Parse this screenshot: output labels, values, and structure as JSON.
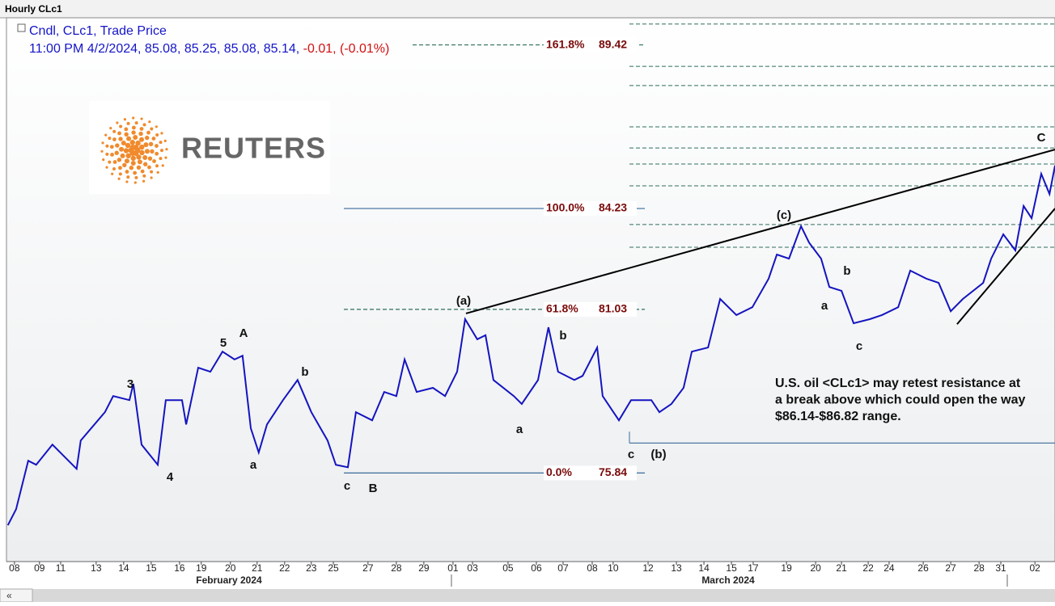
{
  "chart_data": {
    "type": "line",
    "window_title": "Hourly CLc1",
    "logo_text": "REUTERS",
    "header": {
      "line1": "Cndl, CLc1, Trade Price",
      "values_text": "11:00 PM 4/2/2024, 85.08, 85.25, 85.08, 85.14,",
      "change_text": "-0.01, (-0.01%)"
    },
    "color": "#1414c0",
    "xlim": [
      -0.29,
      37.82
    ],
    "ylim": [
      73.03,
      90.28
    ],
    "xticks": [
      {
        "value": 0,
        "label": "08"
      },
      {
        "value": 0.91,
        "label": "09"
      },
      {
        "value": 1.68,
        "label": "11"
      },
      {
        "value": 2.97,
        "label": "13"
      },
      {
        "value": 3.97,
        "label": "14"
      },
      {
        "value": 4.97,
        "label": "15"
      },
      {
        "value": 6.0,
        "label": "16"
      },
      {
        "value": 6.79,
        "label": "19"
      },
      {
        "value": 7.85,
        "label": "20"
      },
      {
        "value": 8.82,
        "label": "21"
      },
      {
        "value": 9.82,
        "label": "22"
      },
      {
        "value": 10.79,
        "label": "23"
      },
      {
        "value": 11.59,
        "label": "25"
      },
      {
        "value": 12.85,
        "label": "27"
      },
      {
        "value": 13.88,
        "label": "28"
      },
      {
        "value": 14.88,
        "label": "29"
      },
      {
        "value": 15.94,
        "label": "01"
      },
      {
        "value": 16.65,
        "label": "03"
      },
      {
        "value": 17.94,
        "label": "05"
      },
      {
        "value": 18.97,
        "label": "06"
      },
      {
        "value": 19.94,
        "label": "07"
      },
      {
        "value": 21.0,
        "label": "08"
      },
      {
        "value": 21.76,
        "label": "10"
      },
      {
        "value": 23.03,
        "label": "12"
      },
      {
        "value": 24.06,
        "label": "13"
      },
      {
        "value": 25.06,
        "label": "14"
      },
      {
        "value": 26.06,
        "label": "15"
      },
      {
        "value": 26.85,
        "label": "17"
      },
      {
        "value": 28.06,
        "label": "19"
      },
      {
        "value": 29.12,
        "label": "20"
      },
      {
        "value": 30.06,
        "label": "21"
      },
      {
        "value": 31.03,
        "label": "22"
      },
      {
        "value": 31.79,
        "label": "24"
      },
      {
        "value": 33.03,
        "label": "26"
      },
      {
        "value": 34.03,
        "label": "27"
      },
      {
        "value": 35.06,
        "label": "28"
      },
      {
        "value": 35.85,
        "label": "31"
      },
      {
        "value": 37.09,
        "label": "02"
      }
    ],
    "months": [
      "February 2024",
      "March 2024"
    ],
    "x": [
      -0.24,
      0.06,
      0.5,
      0.79,
      1.38,
      2.26,
      2.41,
      3.29,
      3.59,
      4.18,
      4.32,
      4.62,
      5.21,
      5.5,
      6.09,
      6.24,
      6.68,
      7.12,
      7.56,
      8.0,
      8.29,
      8.44,
      8.59,
      8.88,
      9.18,
      9.76,
      10.29,
      10.79,
      11.38,
      11.68,
      12.12,
      12.41,
      13.0,
      13.44,
      13.88,
      14.18,
      14.62,
      15.21,
      15.65,
      16.09,
      16.38,
      16.82,
      17.12,
      17.41,
      18.15,
      18.44,
      19.03,
      19.41,
      19.76,
      20.35,
      20.65,
      21.18,
      21.38,
      21.97,
      22.41,
      23.15,
      23.44,
      23.88,
      24.32,
      24.62,
      25.21,
      25.65,
      26.24,
      26.82,
      27.41,
      27.71,
      28.15,
      28.59,
      28.88,
      29.32,
      29.62,
      30.06,
      30.5,
      31.09,
      31.53,
      32.12,
      32.56,
      33.15,
      33.59,
      34.03,
      34.47,
      35.21,
      35.5,
      35.94,
      36.38,
      36.68,
      36.97,
      37.32,
      37.62,
      37.82
    ],
    "values": [
      74.18,
      74.69,
      76.23,
      76.1,
      76.74,
      75.97,
      76.87,
      77.77,
      78.28,
      78.15,
      78.67,
      76.74,
      76.1,
      78.15,
      78.15,
      77.38,
      79.18,
      79.05,
      79.69,
      79.44,
      79.56,
      78.41,
      77.26,
      76.49,
      77.38,
      78.15,
      78.79,
      77.77,
      76.87,
      76.1,
      76.02,
      77.77,
      77.51,
      78.41,
      78.28,
      79.44,
      78.41,
      78.54,
      78.28,
      79.05,
      80.72,
      80.08,
      80.21,
      78.79,
      78.28,
      78.03,
      78.79,
      80.46,
      79.05,
      78.79,
      78.92,
      79.82,
      78.28,
      77.51,
      78.15,
      78.15,
      77.77,
      78.03,
      78.54,
      79.69,
      79.82,
      81.36,
      80.85,
      81.1,
      82.0,
      82.77,
      82.64,
      83.67,
      83.15,
      82.64,
      81.74,
      81.62,
      80.59,
      80.72,
      80.85,
      81.1,
      82.26,
      82.0,
      81.87,
      80.97,
      81.36,
      81.87,
      82.64,
      83.41,
      82.9,
      84.31,
      83.92,
      85.33,
      84.69,
      85.59
    ],
    "fib_levels": [
      {
        "label": "161.8%",
        "value": 89.42,
        "style": "dashed"
      },
      {
        "label": "100.0%",
        "value": 84.23,
        "style": "solid"
      },
      {
        "label": "61.8%",
        "value": 81.03,
        "style": "dashed"
      },
      {
        "label": "0.0%",
        "value": 75.84,
        "style": "solid"
      }
    ],
    "resistance_levels": [
      90.08,
      88.74,
      88.13,
      86.82,
      86.15,
      85.64,
      84.95,
      83.72,
      83.0
    ],
    "support_level": 76.79,
    "trendlines": [
      {
        "x": [
          16.41,
          37.82
        ],
        "values": [
          80.9,
          86.1
        ]
      },
      {
        "x": [
          34.26,
          37.82
        ],
        "values": [
          80.56,
          84.23
        ]
      }
    ],
    "wave_labels": [
      "A",
      "5",
      "3",
      "4",
      "a",
      "b",
      "c",
      "B",
      "(a)",
      "a",
      "b",
      "c",
      "(b)",
      "(c)",
      "a",
      "b",
      "c",
      "C"
    ],
    "note": [
      "U.S. oil <CLc1> may retest resistance at",
      "a break above which could open the way",
      "$86.14-$86.82 range."
    ]
  }
}
